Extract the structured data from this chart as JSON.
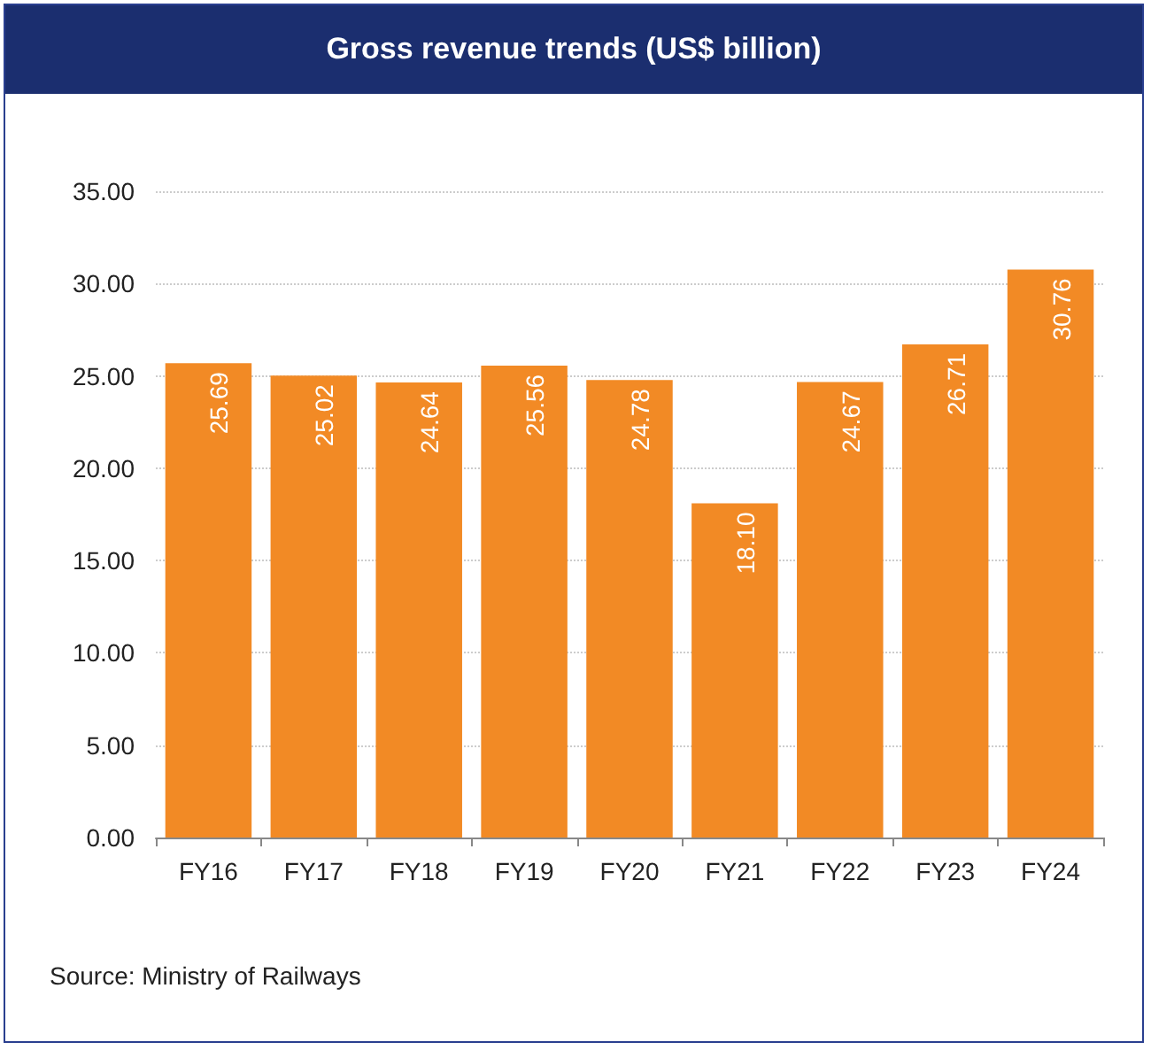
{
  "chart_data": {
    "type": "bar",
    "title": "Gross revenue trends (US$ billion)",
    "categories": [
      "FY16",
      "FY17",
      "FY18",
      "FY19",
      "FY20",
      "FY21",
      "FY22",
      "FY23",
      "FY24"
    ],
    "values": [
      25.69,
      25.02,
      24.64,
      25.56,
      24.78,
      18.1,
      24.67,
      26.71,
      30.76
    ],
    "value_labels": [
      "25.69",
      "25.02",
      "24.64",
      "25.56",
      "24.78",
      "18.10",
      "24.67",
      "26.71",
      "30.76"
    ],
    "color": "#f28a25",
    "ylim": [
      0,
      35
    ],
    "yticks": [
      {
        "value": 0,
        "label": "0.00"
      },
      {
        "value": 5,
        "label": "5.00"
      },
      {
        "value": 10,
        "label": "10.00"
      },
      {
        "value": 15,
        "label": "15.00"
      },
      {
        "value": 20,
        "label": "20.00"
      },
      {
        "value": 25,
        "label": "25.00"
      },
      {
        "value": 30,
        "label": "30.00"
      },
      {
        "value": 35,
        "label": "35.00"
      }
    ],
    "grid": "y",
    "annotations": [
      "Source: Ministry of Railways"
    ]
  }
}
